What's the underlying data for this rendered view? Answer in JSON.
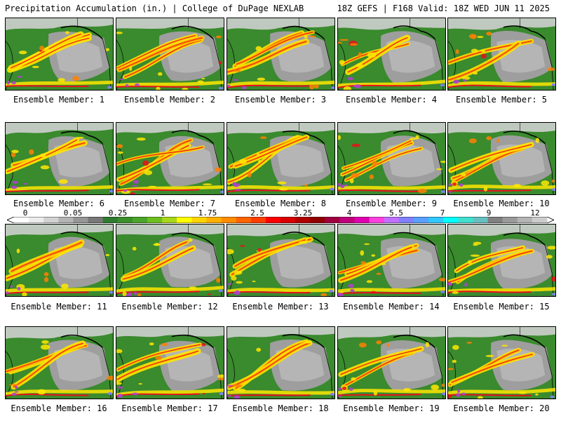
{
  "header": {
    "title_left": "Precipitation Accumulation (in.) | College of DuPage NEXLAB",
    "title_right": "18Z GEFS | F168 Valid: 18Z WED JUN 11 2025"
  },
  "members": [
    {
      "label": "Ensemble Member: 1"
    },
    {
      "label": "Ensemble Member: 2"
    },
    {
      "label": "Ensemble Member: 3"
    },
    {
      "label": "Ensemble Member: 4"
    },
    {
      "label": "Ensemble Member: 5"
    },
    {
      "label": "Ensemble Member: 6"
    },
    {
      "label": "Ensemble Member: 7"
    },
    {
      "label": "Ensemble Member: 8"
    },
    {
      "label": "Ensemble Member: 9"
    },
    {
      "label": "Ensemble Member: 10"
    },
    {
      "label": "Ensemble Member: 11"
    },
    {
      "label": "Ensemble Member: 12"
    },
    {
      "label": "Ensemble Member: 13"
    },
    {
      "label": "Ensemble Member: 14"
    },
    {
      "label": "Ensemble Member: 15"
    },
    {
      "label": "Ensemble Member: 16"
    },
    {
      "label": "Ensemble Member: 17"
    },
    {
      "label": "Ensemble Member: 18"
    },
    {
      "label": "Ensemble Member: 19"
    },
    {
      "label": "Ensemble Member: 20"
    }
  ],
  "colorbar": {
    "ticks": [
      "0",
      "0.05",
      "0.25",
      "1",
      "1.75",
      "2.5",
      "3.25",
      "4",
      "5.5",
      "7",
      "9",
      "12"
    ],
    "colors": [
      "#ffffff",
      "#ececec",
      "#d2d2d2",
      "#b4b4b4",
      "#969696",
      "#787878",
      "#2f7a2f",
      "#3a8f2a",
      "#4aa52a",
      "#6cbf1f",
      "#a8d81a",
      "#ffff00",
      "#ffd400",
      "#ffb000",
      "#ff8c00",
      "#ff6400",
      "#ff3c00",
      "#ff0000",
      "#d80000",
      "#b00000",
      "#900000",
      "#a00040",
      "#c0007a",
      "#e000b0",
      "#ff40e0",
      "#c070ff",
      "#8080ff",
      "#5aa0ff",
      "#30c8ff",
      "#00ffff",
      "#40e0d0",
      "#66c0c0",
      "#808080",
      "#9a9a9a",
      "#b4b4b4",
      "#cccccc"
    ]
  },
  "colors": {
    "ocean_dry": "#9e9e9e",
    "light_precip": "#3a8a2e",
    "moderate_precip": "#ffe600",
    "heavy_precip": "#e8101a",
    "extreme_precip": "#b040d0"
  }
}
